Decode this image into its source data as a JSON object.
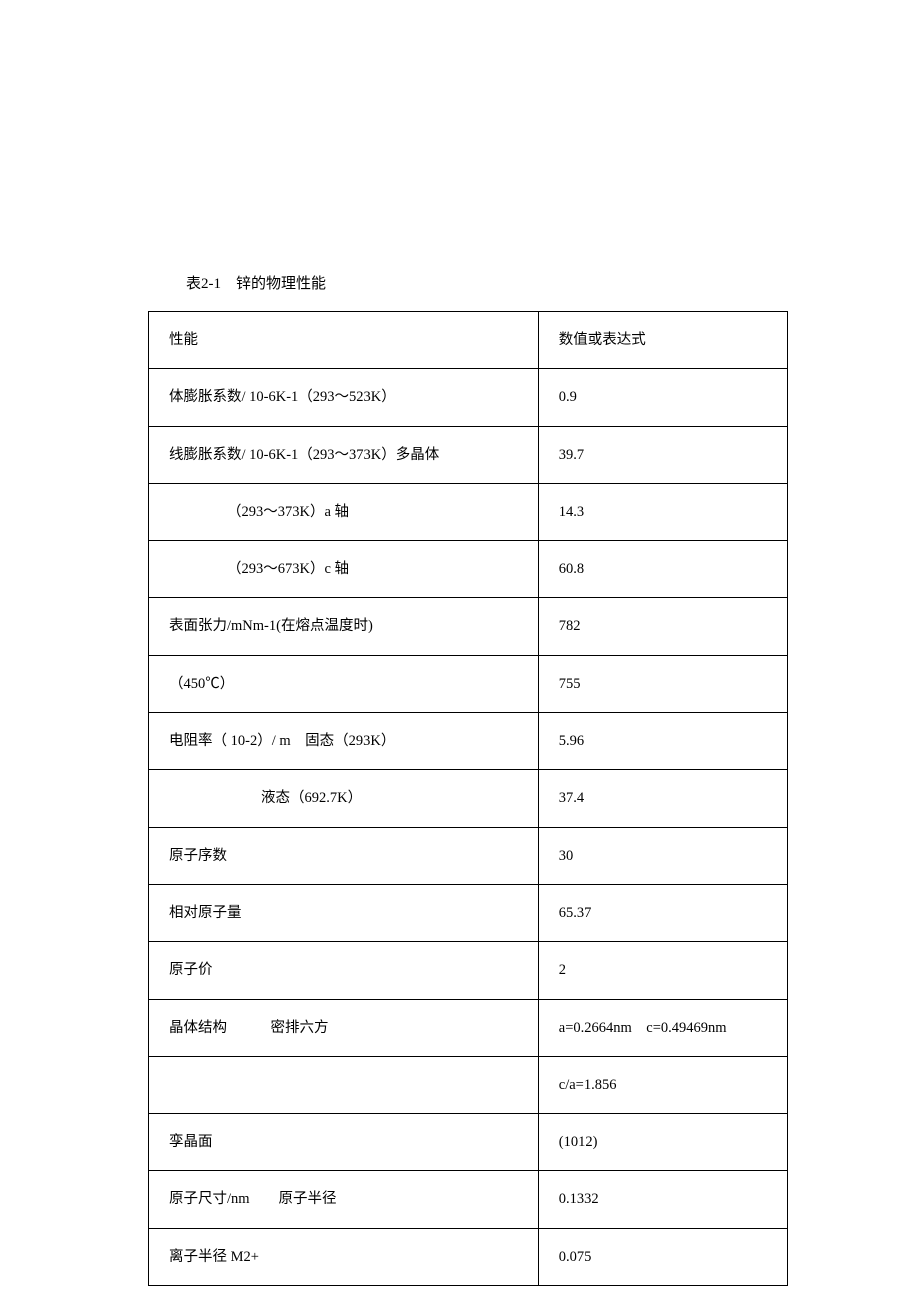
{
  "caption": "表2-1 锌的物理性能",
  "table": {
    "columns": [
      {
        "header": "性能",
        "width": "61%",
        "align": "left"
      },
      {
        "header": "数值或表达式",
        "width": "39%",
        "align": "left"
      }
    ],
    "rows": [
      {
        "label": "性能",
        "value": "数值或表达式",
        "indent": 0,
        "is_header": true
      },
      {
        "label": "体膨胀系数/ 10-6K-1（293～523K）",
        "value": "0.9",
        "indent": 0
      },
      {
        "label": "线膨胀系数/ 10-6K-1（293～373K）多晶体",
        "value": "39.7",
        "indent": 0
      },
      {
        "label": "（293～373K）a 轴",
        "value": "14.3",
        "indent": 2
      },
      {
        "label": "（293～673K）c 轴",
        "value": "60.8",
        "indent": 2
      },
      {
        "label": "表面张力/mNm-1(在熔点温度时)",
        "value": "782",
        "indent": 0
      },
      {
        "label": "（450℃）",
        "value": "755",
        "indent": 0
      },
      {
        "label": "电阻率（ 10-2）/ m 固态（293K）",
        "value": "5.96",
        "indent": 0
      },
      {
        "label": "液态（692.7K）",
        "value": "37.4",
        "indent": 3
      },
      {
        "label": "原子序数",
        "value": "30",
        "indent": 0
      },
      {
        "label": "相对原子量",
        "value": "65.37",
        "indent": 0
      },
      {
        "label": "原子价",
        "value": "2",
        "indent": 0
      },
      {
        "label": "晶体结构   密排六方",
        "value": "a=0.2664nm c=0.49469nm",
        "indent": 0
      },
      {
        "label": "",
        "value": "c/a=1.856",
        "indent": 0
      },
      {
        "label": "孪晶面",
        "value": "(1012)",
        "indent": 0
      },
      {
        "label": "原子尺寸/nm  原子半径",
        "value": "0.1332",
        "indent": 0
      },
      {
        "label": "离子半径 M2+",
        "value": "0.075",
        "indent": 0
      }
    ],
    "border_color": "#000000",
    "background_color": "#ffffff",
    "text_color": "#000000",
    "font_size": 14.5,
    "cell_padding": "18px 20px"
  }
}
